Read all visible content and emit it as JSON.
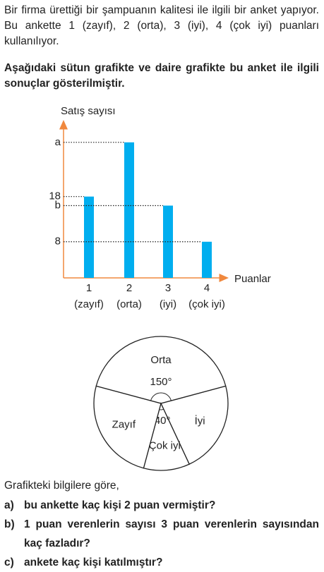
{
  "intro": "Bir firma ürettiği bir şampuanın kalitesi ile ilgili bir anket yapıyor. Bu ankette 1 (zayıf), 2 (orta), 3 (iyi), 4 (çok iyi) puanları kullanılıyor.",
  "instruction": "Aşağıdaki sütun grafikte ve daire grafikte bu anket ile ilgili sonuçlar gösterilmiştir.",
  "chart_data": [
    {
      "type": "bar",
      "y_label": "Satış sayısı",
      "x_label": "Puanlar",
      "categories": [
        "1",
        "2",
        "3",
        "4"
      ],
      "category_notes": [
        "(zayıf)",
        "(orta)",
        "(iyi)",
        "(çok iyi)"
      ],
      "values": [
        18,
        30,
        16,
        8
      ],
      "color": "#00aeef",
      "ylim": [
        0,
        32
      ],
      "yticks": [
        {
          "value": 30,
          "label": "a"
        },
        18,
        {
          "value": 16,
          "label": "b"
        },
        8
      ]
    },
    {
      "type": "pie",
      "categories": [
        "Orta",
        "İyi",
        "Çok iyi",
        "Zayıf"
      ],
      "values": [
        150,
        80,
        40,
        90
      ],
      "value_labels": [
        "150°",
        null,
        "40°",
        null
      ],
      "color": "#ffffff"
    }
  ],
  "prompt": "Grafikteki bilgilere göre,",
  "questions": [
    {
      "label": "a)",
      "text": "bu ankette kaç kişi 2 puan vermiştir?"
    },
    {
      "label": "b)",
      "text": "1 puan verenlerin sayısı 3 puan verenlerin sayısından kaç fazladır?"
    },
    {
      "label": "c)",
      "text": "ankete kaç kişi katılmıştır?"
    }
  ]
}
